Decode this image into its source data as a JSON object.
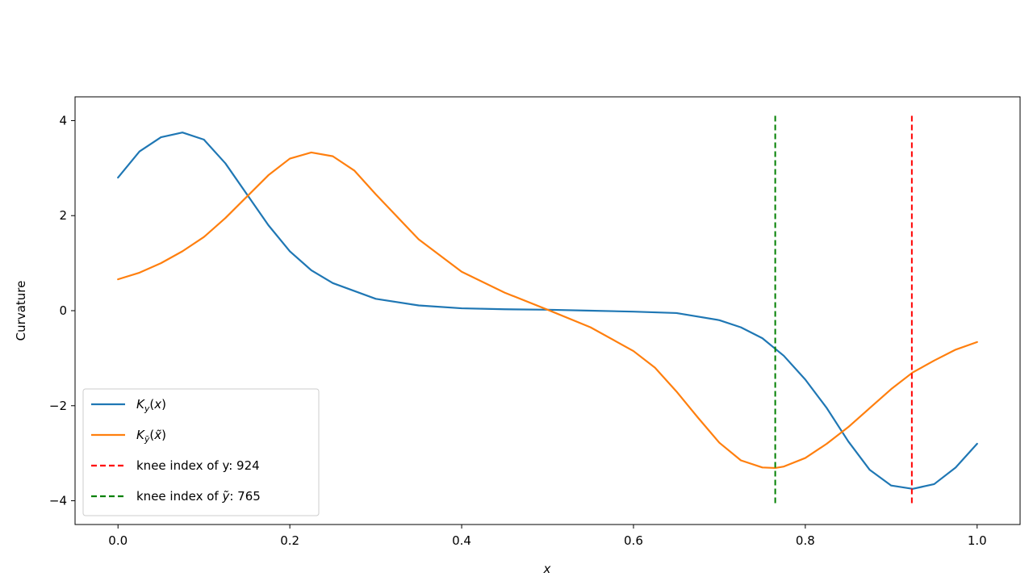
{
  "chart_data": {
    "type": "line",
    "xlabel": "x",
    "ylabel": "Curvature",
    "xlim": [
      -0.05,
      1.05
    ],
    "ylim": [
      -4.5,
      4.5
    ],
    "x_ticks": [
      0.0,
      0.2,
      0.4,
      0.6,
      0.8,
      1.0
    ],
    "x_tick_labels": [
      "0.0",
      "0.2",
      "0.4",
      "0.6",
      "0.8",
      "1.0"
    ],
    "y_ticks": [
      -4,
      -2,
      0,
      2,
      4
    ],
    "y_tick_labels": [
      "−4",
      "−2",
      "0",
      "2",
      "4"
    ],
    "grid": false,
    "legend_position": "lower-left",
    "series": [
      {
        "name": "K_y(x)",
        "color": "#1f77b4",
        "style": "solid",
        "x": [
          0.0,
          0.025,
          0.05,
          0.075,
          0.1,
          0.125,
          0.15,
          0.175,
          0.2,
          0.225,
          0.25,
          0.3,
          0.35,
          0.4,
          0.45,
          0.5,
          0.55,
          0.6,
          0.65,
          0.7,
          0.725,
          0.75,
          0.775,
          0.8,
          0.825,
          0.85,
          0.875,
          0.9,
          0.925,
          0.95,
          0.975,
          1.0
        ],
        "y": [
          2.8,
          3.35,
          3.65,
          3.75,
          3.6,
          3.1,
          2.45,
          1.8,
          1.25,
          0.85,
          0.58,
          0.25,
          0.11,
          0.05,
          0.03,
          0.02,
          0.0,
          -0.02,
          -0.05,
          -0.2,
          -0.35,
          -0.58,
          -0.95,
          -1.45,
          -2.05,
          -2.75,
          -3.35,
          -3.68,
          -3.75,
          -3.65,
          -3.3,
          -2.8
        ]
      },
      {
        "name": "K_ỹ(x̃)",
        "color": "#ff7f0e",
        "style": "solid",
        "x": [
          0.0,
          0.025,
          0.05,
          0.075,
          0.1,
          0.125,
          0.15,
          0.175,
          0.2,
          0.225,
          0.25,
          0.275,
          0.3,
          0.35,
          0.4,
          0.45,
          0.5,
          0.55,
          0.6,
          0.625,
          0.65,
          0.675,
          0.7,
          0.725,
          0.75,
          0.765,
          0.775,
          0.8,
          0.825,
          0.85,
          0.875,
          0.9,
          0.925,
          0.95,
          0.975,
          1.0
        ],
        "y": [
          0.66,
          0.8,
          1.0,
          1.25,
          1.55,
          1.95,
          2.4,
          2.85,
          3.2,
          3.33,
          3.25,
          2.95,
          2.45,
          1.5,
          0.82,
          0.38,
          0.02,
          -0.35,
          -0.85,
          -1.2,
          -1.7,
          -2.25,
          -2.78,
          -3.15,
          -3.3,
          -3.31,
          -3.28,
          -3.1,
          -2.8,
          -2.45,
          -2.05,
          -1.65,
          -1.3,
          -1.05,
          -0.82,
          -0.66
        ]
      }
    ],
    "vlines": [
      {
        "name": "knee index of y: 924",
        "x": 0.924,
        "color": "#ff0000",
        "style": "dashed"
      },
      {
        "name": "knee index of ỹ: 765",
        "x": 0.765,
        "color": "#008000",
        "style": "dashed"
      }
    ],
    "legend": {
      "entries": [
        {
          "label": "K_y(x)",
          "color": "#1f77b4",
          "style": "solid"
        },
        {
          "label": "K_ỹ(x̃)",
          "color": "#ff7f0e",
          "style": "solid"
        },
        {
          "label": "knee index of y: 924",
          "color": "#ff0000",
          "style": "dashed"
        },
        {
          "label": "knee index of ỹ: 765",
          "color": "#008000",
          "style": "dashed"
        }
      ]
    }
  }
}
